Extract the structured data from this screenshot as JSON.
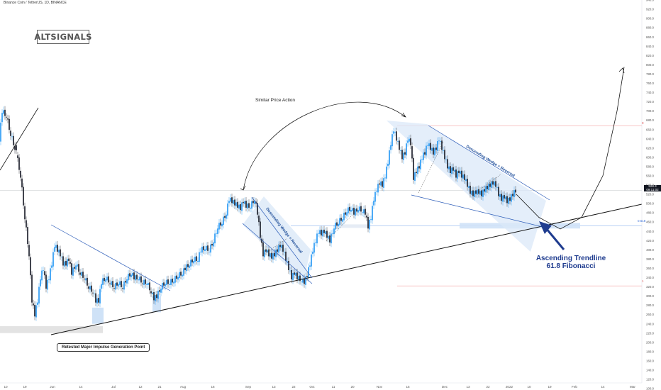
{
  "header": {
    "pair": "Binance Coin / TetherUS, 1D, BINANCE"
  },
  "logo": {
    "text": "ALTSIGNALS"
  },
  "annotations": {
    "similar": "Similar Price Action",
    "retested": "Retested Major Impulse Generation Point",
    "ascending_line1": "Ascending Trendline",
    "ascending_line2": "61.8 Fibonacci",
    "wedge1": "Descending Wedge = Reversal",
    "wedge2": "Descending Wedge = Reversal"
  },
  "price_tag": {
    "price": "528.3",
    "time": "09:11:02"
  },
  "fib": {
    "level_0": "0",
    "level_618": "0.618",
    "level_1": "1"
  },
  "colors": {
    "up": "#2196f3",
    "down": "#131722",
    "trend": "#2a5bb8",
    "fib_zone": "#cfe2f7"
  },
  "chart_data": {
    "type": "candlestick",
    "title": "Binance Coin / TetherUS, 1D, BINANCE",
    "ylim": [
      100,
      940
    ],
    "yticks": [
      100,
      120,
      140,
      160,
      180,
      200,
      220,
      240,
      260,
      280,
      300,
      320,
      340,
      360,
      380,
      400,
      420,
      440,
      460,
      480,
      500,
      520,
      540,
      560,
      580,
      600,
      620,
      640,
      660,
      680,
      700,
      720,
      740,
      760,
      780,
      800,
      820,
      840,
      860,
      880,
      900,
      920,
      940
    ],
    "xticks": [
      "10",
      "19",
      "Jun",
      "14",
      "Jul",
      "12",
      "21",
      "Aug",
      "16",
      "Sep",
      "13",
      "22",
      "Oct",
      "11",
      "20",
      "Nov",
      "15",
      "Dec",
      "13",
      "22",
      "2022",
      "10",
      "19",
      "Feb",
      "14",
      "Mar"
    ],
    "current_price": 528.3,
    "fib_levels": [
      {
        "label": "0",
        "value": 668
      },
      {
        "label": "0.618",
        "value": 452
      },
      {
        "label": "1",
        "value": 322
      }
    ],
    "path": [
      [
        0,
        640
      ],
      [
        4,
        700
      ],
      [
        10,
        690
      ],
      [
        16,
        650
      ],
      [
        24,
        610
      ],
      [
        30,
        560
      ],
      [
        36,
        470
      ],
      [
        42,
        390
      ],
      [
        46,
        290
      ],
      [
        50,
        260
      ],
      [
        54,
        290
      ],
      [
        58,
        340
      ],
      [
        62,
        360
      ],
      [
        66,
        320
      ],
      [
        70,
        340
      ],
      [
        74,
        370
      ],
      [
        78,
        410
      ],
      [
        82,
        400
      ],
      [
        86,
        390
      ],
      [
        90,
        370
      ],
      [
        94,
        370
      ],
      [
        98,
        380
      ],
      [
        102,
        350
      ],
      [
        108,
        370
      ],
      [
        114,
        350
      ],
      [
        120,
        340
      ],
      [
        126,
        320
      ],
      [
        132,
        310
      ],
      [
        136,
        290
      ],
      [
        140,
        290
      ],
      [
        144,
        330
      ],
      [
        150,
        340
      ],
      [
        156,
        330
      ],
      [
        162,
        320
      ],
      [
        168,
        330
      ],
      [
        174,
        320
      ],
      [
        180,
        340
      ],
      [
        186,
        350
      ],
      [
        190,
        340
      ],
      [
        196,
        340
      ],
      [
        202,
        330
      ],
      [
        208,
        330
      ],
      [
        214,
        310
      ],
      [
        218,
        295
      ],
      [
        222,
        300
      ],
      [
        228,
        320
      ],
      [
        234,
        330
      ],
      [
        240,
        330
      ],
      [
        246,
        335
      ],
      [
        252,
        345
      ],
      [
        258,
        350
      ],
      [
        262,
        360
      ],
      [
        268,
        370
      ],
      [
        274,
        380
      ],
      [
        280,
        380
      ],
      [
        284,
        400
      ],
      [
        290,
        405
      ],
      [
        296,
        400
      ],
      [
        302,
        420
      ],
      [
        308,
        450
      ],
      [
        314,
        460
      ],
      [
        320,
        480
      ],
      [
        324,
        510
      ],
      [
        328,
        505
      ],
      [
        332,
        500
      ],
      [
        336,
        495
      ],
      [
        340,
        490
      ],
      [
        344,
        505
      ],
      [
        348,
        495
      ],
      [
        354,
        495
      ],
      [
        360,
        510
      ],
      [
        364,
        480
      ],
      [
        368,
        430
      ],
      [
        372,
        390
      ],
      [
        376,
        400
      ],
      [
        380,
        390
      ],
      [
        384,
        385
      ],
      [
        388,
        390
      ],
      [
        392,
        400
      ],
      [
        396,
        410
      ],
      [
        400,
        400
      ],
      [
        404,
        380
      ],
      [
        408,
        360
      ],
      [
        412,
        340
      ],
      [
        416,
        350
      ],
      [
        420,
        340
      ],
      [
        426,
        335
      ],
      [
        430,
        330
      ],
      [
        434,
        345
      ],
      [
        438,
        370
      ],
      [
        442,
        400
      ],
      [
        446,
        420
      ],
      [
        450,
        440
      ],
      [
        454,
        435
      ],
      [
        458,
        440
      ],
      [
        462,
        430
      ],
      [
        466,
        420
      ],
      [
        472,
        450
      ],
      [
        478,
        460
      ],
      [
        484,
        470
      ],
      [
        490,
        485
      ],
      [
        496,
        490
      ],
      [
        500,
        480
      ],
      [
        506,
        490
      ],
      [
        512,
        485
      ],
      [
        516,
        480
      ],
      [
        520,
        450
      ],
      [
        524,
        470
      ],
      [
        528,
        510
      ],
      [
        532,
        530
      ],
      [
        536,
        545
      ],
      [
        540,
        540
      ],
      [
        544,
        560
      ],
      [
        548,
        590
      ],
      [
        552,
        630
      ],
      [
        556,
        660
      ],
      [
        560,
        640
      ],
      [
        564,
        620
      ],
      [
        568,
        600
      ],
      [
        572,
        610
      ],
      [
        576,
        640
      ],
      [
        580,
        630
      ],
      [
        584,
        555
      ],
      [
        588,
        570
      ],
      [
        592,
        580
      ],
      [
        596,
        600
      ],
      [
        600,
        610
      ],
      [
        604,
        630
      ],
      [
        608,
        620
      ],
      [
        612,
        610
      ],
      [
        616,
        620
      ],
      [
        620,
        640
      ],
      [
        624,
        620
      ],
      [
        628,
        600
      ],
      [
        632,
        580
      ],
      [
        636,
        570
      ],
      [
        640,
        575
      ],
      [
        644,
        560
      ],
      [
        648,
        570
      ],
      [
        652,
        560
      ],
      [
        656,
        555
      ],
      [
        660,
        540
      ],
      [
        664,
        525
      ],
      [
        668,
        520
      ],
      [
        672,
        525
      ],
      [
        676,
        525
      ],
      [
        680,
        520
      ],
      [
        684,
        530
      ],
      [
        688,
        535
      ],
      [
        692,
        540
      ],
      [
        696,
        545
      ],
      [
        700,
        540
      ],
      [
        704,
        520
      ],
      [
        708,
        510
      ],
      [
        712,
        515
      ],
      [
        716,
        505
      ],
      [
        720,
        510
      ],
      [
        724,
        520
      ],
      [
        728,
        528
      ]
    ],
    "projection": [
      [
        728,
        520
      ],
      [
        760,
        470
      ],
      [
        790,
        445
      ],
      [
        820,
        470
      ],
      [
        850,
        560
      ],
      [
        870,
        700
      ],
      [
        880,
        795
      ]
    ]
  }
}
